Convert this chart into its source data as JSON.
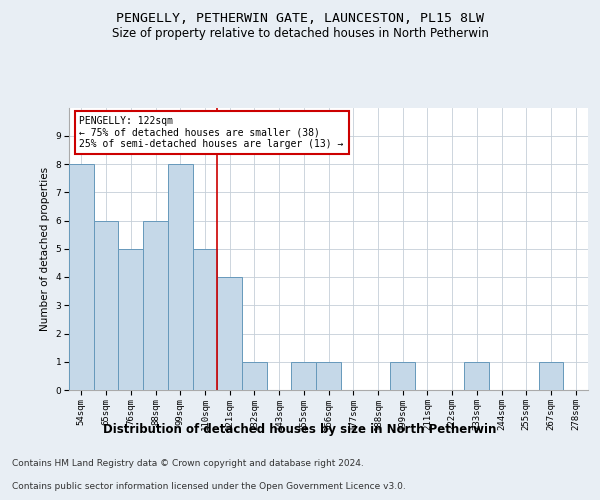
{
  "title": "PENGELLY, PETHERWIN GATE, LAUNCESTON, PL15 8LW",
  "subtitle": "Size of property relative to detached houses in North Petherwin",
  "xlabel": "Distribution of detached houses by size in North Petherwin",
  "ylabel": "Number of detached properties",
  "categories": [
    "54sqm",
    "65sqm",
    "76sqm",
    "88sqm",
    "99sqm",
    "110sqm",
    "121sqm",
    "132sqm",
    "143sqm",
    "155sqm",
    "166sqm",
    "177sqm",
    "188sqm",
    "199sqm",
    "211sqm",
    "222sqm",
    "233sqm",
    "244sqm",
    "255sqm",
    "267sqm",
    "278sqm"
  ],
  "values": [
    8,
    6,
    5,
    6,
    8,
    5,
    4,
    1,
    0,
    1,
    1,
    0,
    0,
    1,
    0,
    0,
    1,
    0,
    0,
    1,
    0
  ],
  "bar_color": "#c5d8e8",
  "bar_edge_color": "#6699bb",
  "vline_color": "#cc0000",
  "annotation_text": "PENGELLY: 122sqm\n← 75% of detached houses are smaller (38)\n25% of semi-detached houses are larger (13) →",
  "annotation_box_color": "#ffffff",
  "annotation_box_edge_color": "#cc0000",
  "ylim": [
    0,
    10
  ],
  "yticks": [
    0,
    1,
    2,
    3,
    4,
    5,
    6,
    7,
    8,
    9
  ],
  "background_color": "#e8eef4",
  "plot_bg_color": "#ffffff",
  "title_fontsize": 9.5,
  "subtitle_fontsize": 8.5,
  "xlabel_fontsize": 8.5,
  "ylabel_fontsize": 7.5,
  "tick_fontsize": 6.5,
  "annot_fontsize": 7.0,
  "footer_fontsize": 6.5,
  "footer_line1": "Contains HM Land Registry data © Crown copyright and database right 2024.",
  "footer_line2": "Contains public sector information licensed under the Open Government Licence v3.0."
}
